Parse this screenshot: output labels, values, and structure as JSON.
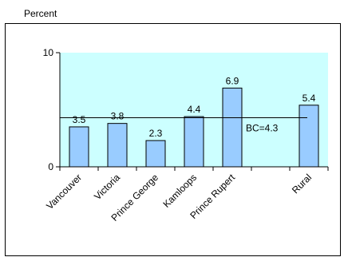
{
  "chart_data": {
    "type": "bar",
    "ylabel": "Percent",
    "xlabel": "",
    "title": "",
    "ylim": [
      0,
      10
    ],
    "yticks": [
      0,
      10
    ],
    "categories": [
      "Vancouver",
      "Victoria",
      "Prince George",
      "Kamloops",
      "Prince Rupert",
      "",
      "Rural"
    ],
    "values": [
      3.5,
      3.8,
      2.3,
      4.4,
      6.9,
      null,
      5.4
    ],
    "value_labels": [
      "3.5",
      "3.8",
      "2.3",
      "4.4",
      "6.9",
      "",
      "5.4"
    ],
    "reference_line": {
      "value": 4.3,
      "label": "BC=4.3"
    },
    "grid": false,
    "colors": {
      "plot_background": "#ccffff",
      "bar_fill": "#99ccff",
      "bar_stroke": "#000000"
    }
  }
}
